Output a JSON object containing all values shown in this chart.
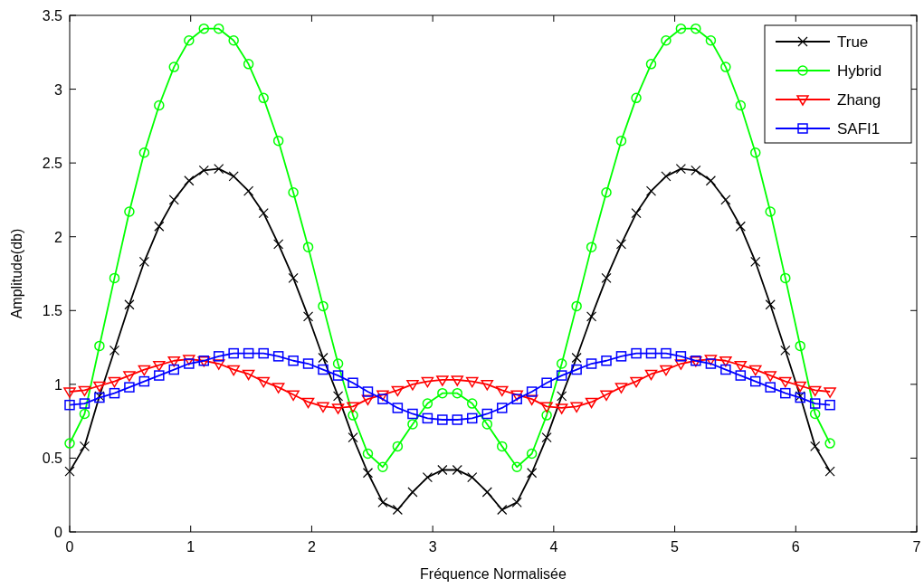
{
  "chart_data": {
    "type": "line",
    "xlabel": "Fréquence Normalisée",
    "ylabel": "Amplitude(db)",
    "x": [
      0,
      0.123,
      0.246,
      0.37,
      0.493,
      0.616,
      0.739,
      0.862,
      0.986,
      1.109,
      1.232,
      1.355,
      1.478,
      1.602,
      1.725,
      1.848,
      1.971,
      2.094,
      2.218,
      2.341,
      2.464,
      2.587,
      2.71,
      2.834,
      2.957,
      3.08,
      3.203,
      3.326,
      3.45,
      3.573,
      3.696,
      3.819,
      3.942,
      4.066,
      4.189,
      4.312,
      4.435,
      4.558,
      4.682,
      4.805,
      4.928,
      5.051,
      5.174,
      5.298,
      5.421,
      5.544,
      5.667,
      5.79,
      5.914,
      6.037,
      6.16,
      6.283
    ],
    "series": [
      {
        "name": "True",
        "color": "#000000",
        "marker": "cross",
        "values": [
          0.41,
          0.58,
          0.92,
          1.23,
          1.54,
          1.83,
          2.07,
          2.25,
          2.38,
          2.45,
          2.46,
          2.41,
          2.31,
          2.16,
          1.95,
          1.72,
          1.46,
          1.18,
          0.92,
          0.64,
          0.4,
          0.2,
          0.15,
          0.27,
          0.37,
          0.42,
          0.42,
          0.37,
          0.27,
          0.15,
          0.2,
          0.4,
          0.64,
          0.92,
          1.18,
          1.46,
          1.72,
          1.95,
          2.16,
          2.31,
          2.41,
          2.46,
          2.45,
          2.38,
          2.25,
          2.07,
          1.83,
          1.54,
          1.23,
          0.92,
          0.58,
          0.41
        ]
      },
      {
        "name": "Hybrid",
        "color": "#00ff00",
        "marker": "circle",
        "values": [
          0.6,
          0.8,
          1.26,
          1.72,
          2.17,
          2.57,
          2.89,
          3.15,
          3.33,
          3.41,
          3.41,
          3.33,
          3.17,
          2.94,
          2.65,
          2.3,
          1.93,
          1.53,
          1.14,
          0.79,
          0.53,
          0.44,
          0.58,
          0.73,
          0.87,
          0.94,
          0.94,
          0.87,
          0.73,
          0.58,
          0.44,
          0.53,
          0.79,
          1.14,
          1.53,
          1.93,
          2.3,
          2.65,
          2.94,
          3.17,
          3.33,
          3.41,
          3.41,
          3.33,
          3.15,
          2.89,
          2.57,
          2.17,
          1.72,
          1.26,
          0.8,
          0.6
        ]
      },
      {
        "name": "Zhang",
        "color": "#ff0000",
        "marker": "triangle",
        "values": [
          0.95,
          0.96,
          0.99,
          1.02,
          1.06,
          1.1,
          1.13,
          1.16,
          1.17,
          1.16,
          1.14,
          1.1,
          1.07,
          1.02,
          0.98,
          0.93,
          0.88,
          0.85,
          0.84,
          0.85,
          0.9,
          0.93,
          0.96,
          1.0,
          1.02,
          1.03,
          1.03,
          1.02,
          1.0,
          0.96,
          0.93,
          0.9,
          0.85,
          0.84,
          0.85,
          0.88,
          0.93,
          0.98,
          1.02,
          1.07,
          1.1,
          1.14,
          1.16,
          1.17,
          1.16,
          1.13,
          1.1,
          1.06,
          1.02,
          0.99,
          0.96,
          0.95
        ]
      },
      {
        "name": "SAFI1",
        "color": "#0000ff",
        "marker": "square",
        "values": [
          0.86,
          0.87,
          0.91,
          0.94,
          0.98,
          1.02,
          1.06,
          1.1,
          1.14,
          1.16,
          1.19,
          1.21,
          1.21,
          1.21,
          1.19,
          1.16,
          1.14,
          1.1,
          1.06,
          1.01,
          0.95,
          0.9,
          0.84,
          0.8,
          0.77,
          0.76,
          0.76,
          0.77,
          0.8,
          0.84,
          0.9,
          0.95,
          1.01,
          1.06,
          1.1,
          1.14,
          1.16,
          1.19,
          1.21,
          1.21,
          1.21,
          1.19,
          1.16,
          1.14,
          1.1,
          1.06,
          1.02,
          0.98,
          0.94,
          0.91,
          0.87,
          0.86
        ]
      }
    ],
    "xlim": [
      0,
      7
    ],
    "xticks": [
      0,
      1,
      2,
      3,
      4,
      5,
      6,
      7
    ],
    "ylim": [
      0,
      3.5
    ],
    "yticks": [
      0,
      0.5,
      1,
      1.5,
      2,
      2.5,
      3,
      3.5
    ],
    "legend": "top right",
    "line_style": "solid"
  }
}
